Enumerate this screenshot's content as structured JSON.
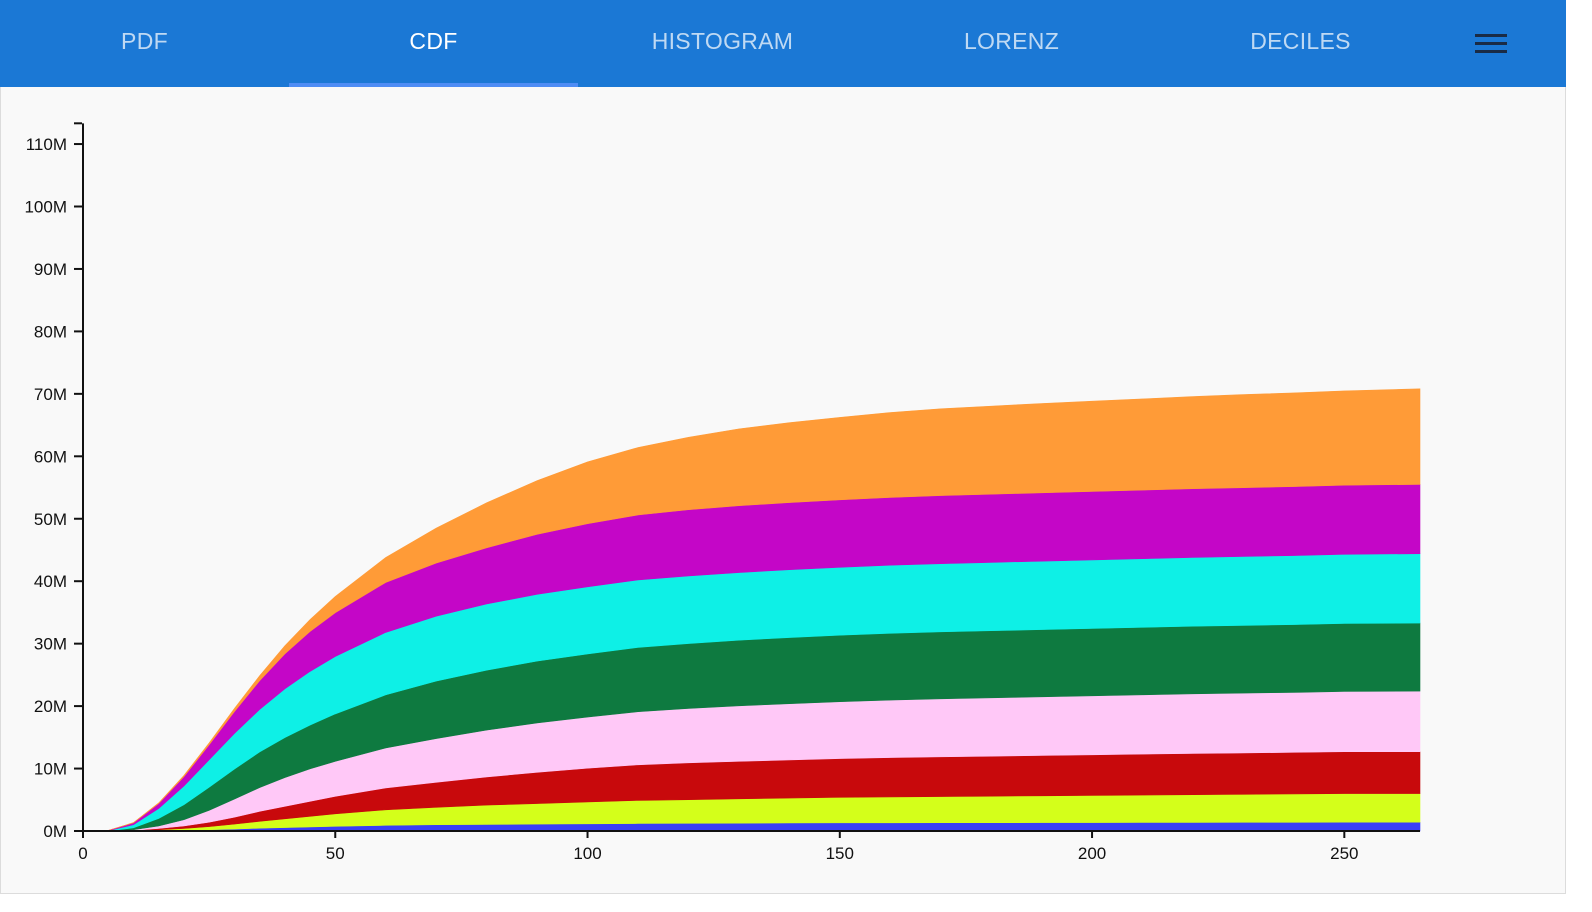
{
  "tabs": [
    {
      "label": "PDF",
      "active": false
    },
    {
      "label": "CDF",
      "active": true
    },
    {
      "label": "HISTOGRAM",
      "active": false
    },
    {
      "label": "LORENZ",
      "active": false
    },
    {
      "label": "DECILES",
      "active": false
    }
  ],
  "menu_icon": "hamburger-menu-icon",
  "colors": {
    "header": "#1b78d5",
    "tab_indicator": "#4f8df5"
  },
  "chart_data": {
    "type": "area",
    "stacked": true,
    "title": "",
    "xlabel": "",
    "ylabel": "",
    "xlim": [
      0,
      265
    ],
    "ylim": [
      0,
      113000000
    ],
    "x_ticks": [
      0,
      50,
      100,
      150,
      200,
      250
    ],
    "x_tick_labels": [
      "0",
      "50",
      "100",
      "150",
      "200",
      "250"
    ],
    "y_ticks": [
      0,
      10000000,
      20000000,
      30000000,
      40000000,
      50000000,
      60000000,
      70000000,
      80000000,
      90000000,
      100000000,
      110000000
    ],
    "y_tick_labels": [
      "0M",
      "10M",
      "20M",
      "30M",
      "40M",
      "50M",
      "60M",
      "70M",
      "80M",
      "90M",
      "100M",
      "110M"
    ],
    "grid": false,
    "legend": "none",
    "x": [
      0,
      5,
      10,
      15,
      20,
      25,
      30,
      35,
      40,
      45,
      50,
      60,
      70,
      80,
      90,
      100,
      110,
      120,
      130,
      140,
      150,
      160,
      170,
      180,
      190,
      200,
      210,
      220,
      230,
      240,
      250,
      265
    ],
    "series": [
      {
        "color": "#3a3ff5",
        "values": [
          0,
          0,
          0,
          0.05,
          0.1,
          0.2,
          0.3,
          0.45,
          0.55,
          0.65,
          0.75,
          0.9,
          1.0,
          1.05,
          1.1,
          1.15,
          1.2,
          1.22,
          1.25,
          1.28,
          1.3,
          1.31,
          1.32,
          1.33,
          1.34,
          1.35,
          1.36,
          1.37,
          1.38,
          1.39,
          1.4,
          1.4
        ]
      },
      {
        "color": "#d4ff1a",
        "values": [
          0,
          0,
          0.05,
          0.15,
          0.3,
          0.5,
          0.8,
          1.1,
          1.4,
          1.7,
          2.0,
          2.5,
          2.8,
          3.1,
          3.3,
          3.5,
          3.7,
          3.8,
          3.9,
          4.0,
          4.1,
          4.15,
          4.2,
          4.25,
          4.3,
          4.35,
          4.4,
          4.45,
          4.5,
          4.55,
          4.6,
          4.6
        ]
      },
      {
        "color": "#c8090c",
        "values": [
          0,
          0,
          0.05,
          0.2,
          0.4,
          0.7,
          1.1,
          1.6,
          2.0,
          2.4,
          2.8,
          3.5,
          4.0,
          4.5,
          5.0,
          5.4,
          5.7,
          5.9,
          6.0,
          6.1,
          6.2,
          6.3,
          6.35,
          6.4,
          6.45,
          6.5,
          6.55,
          6.6,
          6.62,
          6.65,
          6.7,
          6.7
        ]
      },
      {
        "color": "#ffc8f7",
        "values": [
          0,
          0,
          0.1,
          0.4,
          1.0,
          1.9,
          2.9,
          3.8,
          4.6,
          5.2,
          5.6,
          6.4,
          7.0,
          7.5,
          7.9,
          8.2,
          8.5,
          8.7,
          8.9,
          9.0,
          9.1,
          9.2,
          9.3,
          9.35,
          9.4,
          9.45,
          9.5,
          9.55,
          9.58,
          9.6,
          9.65,
          9.7
        ]
      },
      {
        "color": "#0e7a40",
        "values": [
          0,
          0,
          0.3,
          1.2,
          2.4,
          3.7,
          4.8,
          5.7,
          6.4,
          7.0,
          7.6,
          8.5,
          9.2,
          9.6,
          9.9,
          10.1,
          10.3,
          10.4,
          10.5,
          10.6,
          10.65,
          10.7,
          10.72,
          10.74,
          10.76,
          10.78,
          10.8,
          10.82,
          10.84,
          10.86,
          10.88,
          10.9
        ]
      },
      {
        "color": "#0ef0e6",
        "values": [
          0,
          0.05,
          0.5,
          1.6,
          3.0,
          4.4,
          5.7,
          6.8,
          7.8,
          8.6,
          9.2,
          10.0,
          10.4,
          10.6,
          10.7,
          10.75,
          10.8,
          10.82,
          10.84,
          10.86,
          10.88,
          10.9,
          10.92,
          10.94,
          10.96,
          10.98,
          11.0,
          11.02,
          11.04,
          11.06,
          11.08,
          11.1
        ]
      },
      {
        "color": "#c406c7",
        "values": [
          0,
          0.05,
          0.3,
          0.8,
          1.5,
          2.4,
          3.5,
          4.6,
          5.6,
          6.4,
          7.0,
          8.0,
          8.5,
          9.0,
          9.6,
          10.1,
          10.4,
          10.6,
          10.7,
          10.75,
          10.8,
          10.85,
          10.9,
          10.92,
          10.94,
          10.96,
          10.98,
          11.0,
          11.02,
          11.04,
          11.06,
          11.1
        ]
      },
      {
        "color": "#ff9b37",
        "values": [
          0,
          0,
          0.05,
          0.1,
          0.2,
          0.3,
          0.5,
          0.8,
          1.3,
          1.9,
          2.6,
          4.0,
          5.6,
          7.2,
          8.6,
          9.9,
          10.8,
          11.6,
          12.3,
          12.8,
          13.2,
          13.6,
          13.9,
          14.1,
          14.3,
          14.45,
          14.6,
          14.75,
          14.9,
          15.0,
          15.1,
          15.3
        ]
      }
    ],
    "series_units": "millions"
  }
}
